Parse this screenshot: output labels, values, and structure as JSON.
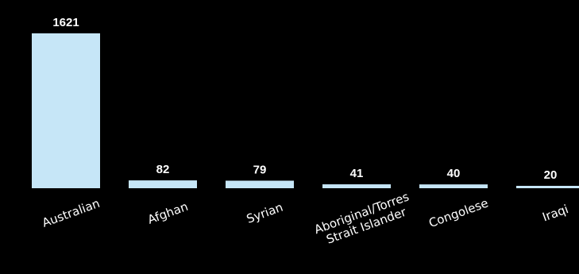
{
  "chart_data": {
    "type": "bar",
    "categories": [
      "Australian",
      "Afghan",
      "Syrian",
      "Aboriginal/Torres Strait Islander",
      "Congolese",
      "Iraqi"
    ],
    "category_lines": [
      [
        "Australian"
      ],
      [
        "Afghan"
      ],
      [
        "Syrian"
      ],
      [
        "Aboriginal/Torres",
        "Strait Islander"
      ],
      [
        "Congolese"
      ],
      [
        "Iraqi"
      ]
    ],
    "values": [
      1621,
      82,
      79,
      41,
      40,
      20
    ],
    "value_labels": [
      "1621",
      "82",
      "79",
      "41",
      "40",
      "20"
    ],
    "title": "",
    "xlabel": "",
    "ylabel": "",
    "ylim": [
      0,
      1621
    ],
    "grid": false,
    "legend": "none",
    "colors": {
      "background": "#000000",
      "bar": "#c6e6f7",
      "text": "#ffffff"
    }
  }
}
